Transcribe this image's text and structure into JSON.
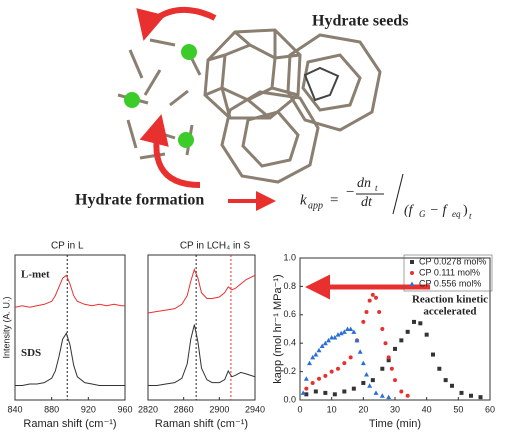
{
  "header": {
    "title": "Hydrate seeds",
    "subtitle": "Hydrate formation",
    "formula": [
      "k",
      "app",
      "=",
      "−",
      "dn",
      "t",
      "dt",
      "(f",
      "G",
      " − f",
      "eq",
      ")",
      "t"
    ]
  },
  "chart_data": [
    {
      "type": "line",
      "xlabel": "Raman shift (cm⁻¹)",
      "ylabel": "Intensity (A. U.)",
      "xlim": [
        840,
        960
      ],
      "xticks": [
        840,
        880,
        920,
        960
      ],
      "ylim": [
        0,
        1
      ],
      "x": [
        840,
        848,
        856,
        864,
        872,
        880,
        884,
        888,
        892,
        896,
        900,
        904,
        908,
        916,
        924,
        932,
        940,
        948,
        956,
        960
      ],
      "annotations": [
        {
          "text": "CP in L",
          "x": 897,
          "color": "#222"
        }
      ],
      "series": [
        {
          "name": "L-met",
          "color": "#e8312f",
          "values": [
            0.64,
            0.65,
            0.64,
            0.65,
            0.66,
            0.68,
            0.72,
            0.78,
            0.84,
            0.86,
            0.8,
            0.72,
            0.68,
            0.66,
            0.65,
            0.66,
            0.65,
            0.66,
            0.65,
            0.65
          ]
        },
        {
          "name": "SDS",
          "color": "#333",
          "values": [
            0.1,
            0.1,
            0.11,
            0.11,
            0.12,
            0.15,
            0.2,
            0.3,
            0.42,
            0.46,
            0.38,
            0.24,
            0.16,
            0.12,
            0.11,
            0.1,
            0.1,
            0.1,
            0.1,
            0.1
          ]
        }
      ]
    },
    {
      "type": "line",
      "xlabel": "Raman shift (cm⁻¹)",
      "xlim": [
        2820,
        2940
      ],
      "xticks": [
        2820,
        2860,
        2900,
        2940
      ],
      "ylim": [
        0,
        1
      ],
      "x": [
        2820,
        2830,
        2840,
        2850,
        2858,
        2864,
        2868,
        2872,
        2876,
        2880,
        2886,
        2892,
        2900,
        2906,
        2910,
        2914,
        2918,
        2924,
        2930,
        2940
      ],
      "annotations": [
        {
          "text": "CP in L",
          "x": 2874,
          "color": "#222"
        },
        {
          "text": "CH₄ in S",
          "x": 2913,
          "color": "#e8312f"
        }
      ],
      "series": [
        {
          "color": "#e8312f",
          "values": [
            0.6,
            0.61,
            0.62,
            0.63,
            0.66,
            0.72,
            0.82,
            0.9,
            0.84,
            0.74,
            0.7,
            0.7,
            0.71,
            0.74,
            0.78,
            0.76,
            0.77,
            0.8,
            0.83,
            0.86
          ]
        },
        {
          "color": "#333",
          "values": [
            0.1,
            0.1,
            0.11,
            0.12,
            0.15,
            0.25,
            0.42,
            0.52,
            0.4,
            0.22,
            0.14,
            0.12,
            0.12,
            0.14,
            0.2,
            0.16,
            0.17,
            0.19,
            0.18,
            0.16
          ]
        }
      ]
    },
    {
      "type": "scatter",
      "xlabel": "Time (min)",
      "ylabel": "kapp (mol hr⁻¹ MPa⁻¹)",
      "xlim": [
        0,
        60
      ],
      "xticks": [
        0,
        10,
        20,
        30,
        40,
        50,
        60
      ],
      "ylim": [
        0,
        1
      ],
      "yticks": [
        {
          "value": 0,
          "label": "0.0"
        },
        0.2,
        0.4,
        0.6,
        0.8,
        {
          "value": 1,
          "label": "1.0"
        }
      ],
      "annotation": [
        "Reaction kinetic",
        "accelerated"
      ],
      "series": [
        {
          "name": "CP 0.0278 mol%",
          "color": "#333",
          "marker": "square",
          "x": [
            2,
            5,
            8,
            11,
            14,
            17,
            20,
            23,
            26,
            28,
            30,
            32,
            34,
            36,
            38,
            40,
            42,
            44,
            46,
            48,
            51,
            54,
            57
          ],
          "values": [
            0.04,
            0.06,
            0.05,
            0.04,
            0.06,
            0.08,
            0.12,
            0.14,
            0.22,
            0.28,
            0.36,
            0.42,
            0.48,
            0.55,
            0.54,
            0.46,
            0.32,
            0.22,
            0.14,
            0.1,
            0.05,
            0.03,
            0.02
          ]
        },
        {
          "name": "CP 0.111 mol%",
          "color": "#e8312f",
          "marker": "circle",
          "x": [
            2,
            4,
            6,
            8,
            10,
            12,
            14,
            16,
            18,
            20,
            21,
            22,
            23,
            24,
            25,
            26,
            27,
            28,
            29,
            30,
            32,
            34
          ],
          "values": [
            0.08,
            0.12,
            0.15,
            0.17,
            0.2,
            0.22,
            0.26,
            0.3,
            0.42,
            0.55,
            0.62,
            0.7,
            0.74,
            0.72,
            0.62,
            0.5,
            0.4,
            0.3,
            0.22,
            0.14,
            0.06,
            0.03
          ]
        },
        {
          "name": "CP 0.556 mol%",
          "color": "#2a6fd6",
          "marker": "triangle",
          "x": [
            1,
            2,
            3,
            4,
            5,
            6,
            7,
            8,
            9,
            10,
            11,
            12,
            13,
            14,
            15,
            16,
            17,
            18,
            19,
            20,
            21,
            22,
            24,
            26,
            28
          ],
          "values": [
            0.05,
            0.15,
            0.26,
            0.3,
            0.32,
            0.35,
            0.38,
            0.4,
            0.42,
            0.44,
            0.44,
            0.46,
            0.47,
            0.48,
            0.5,
            0.5,
            0.48,
            0.42,
            0.34,
            0.26,
            0.18,
            0.1,
            0.05,
            0.03,
            0.02
          ]
        }
      ]
    }
  ]
}
